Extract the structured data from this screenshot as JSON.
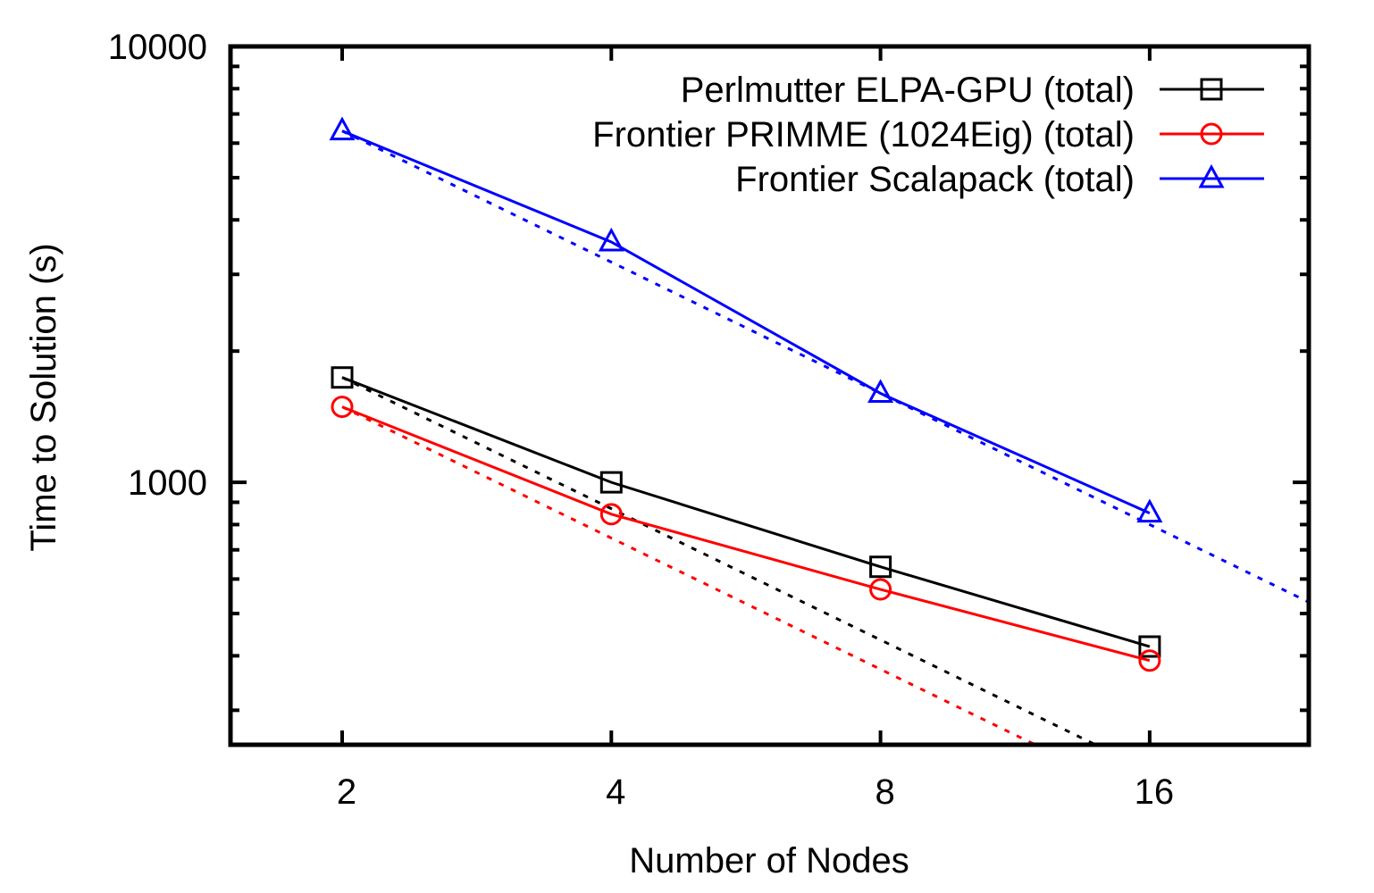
{
  "chart_data": {
    "type": "line",
    "xlabel": "Number of Nodes",
    "ylabel": "Time to Solution (s)",
    "x_scale": "log2",
    "y_scale": "log10",
    "xlim": [
      1.5,
      24
    ],
    "ylim": [
      250,
      10000
    ],
    "x": [
      2,
      4,
      8,
      16
    ],
    "x_tick_labels": [
      "2",
      "4",
      "8",
      "16"
    ],
    "y_tick_labels": [
      "1000",
      "10000"
    ],
    "y_ticks": [
      1000,
      10000
    ],
    "legend_position": "top-right",
    "series": [
      {
        "name": "Perlmutter ELPA-GPU (total)",
        "color": "#000000",
        "marker": "square",
        "values": [
          1740,
          1000,
          640,
          420
        ]
      },
      {
        "name": "Frontier PRIMME (1024Eig) (total)",
        "color": "#ff0000",
        "marker": "circle",
        "values": [
          1490,
          845,
          568,
          390
        ]
      },
      {
        "name": "Frontier Scalapack (total)",
        "color": "#0000ff",
        "marker": "triangle",
        "values": [
          6400,
          3560,
          1600,
          850
        ]
      }
    ],
    "ideal_scaling_lines": [
      {
        "color": "#000000",
        "from_x": 2,
        "from_y": 1740,
        "style": "dotted"
      },
      {
        "color": "#ff0000",
        "from_x": 2,
        "from_y": 1490,
        "style": "dotted"
      },
      {
        "color": "#0000ff",
        "from_x": 2,
        "from_y": 6400,
        "style": "dotted"
      }
    ]
  }
}
